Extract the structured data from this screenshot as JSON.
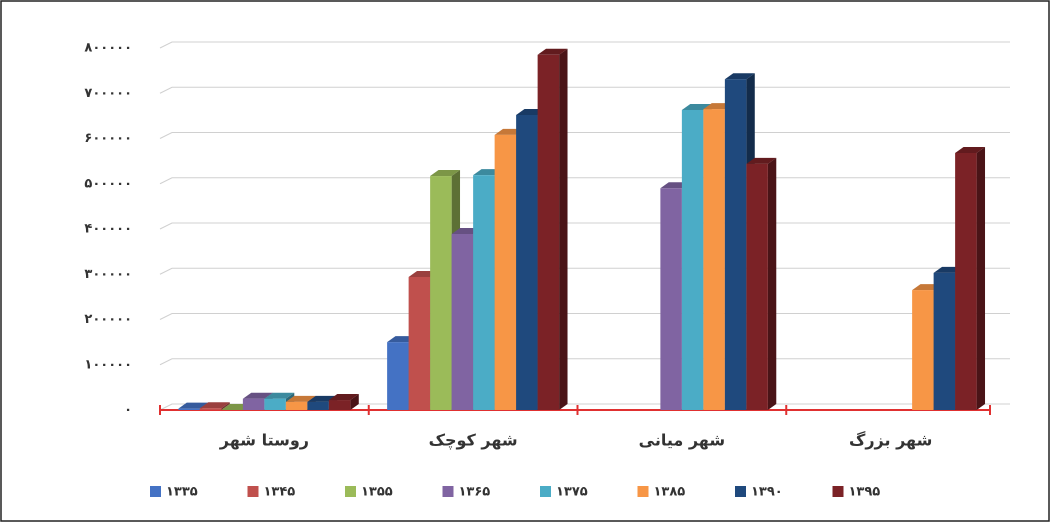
{
  "chart_data": {
    "type": "bar3d",
    "categories": [
      "روستا شهر",
      "شهر کوچک",
      "شهر میانی",
      "شهر بزرگ"
    ],
    "series": [
      {
        "name": "۱۳۳۵",
        "color": "#4472c4",
        "values": [
          3000,
          150000,
          null,
          null
        ]
      },
      {
        "name": "۱۳۴۵",
        "color": "#c0504d",
        "values": [
          4000,
          294000,
          null,
          null
        ]
      },
      {
        "name": "۱۳۵۵",
        "color": "#9bbb59",
        "values": [
          0,
          517000,
          null,
          null
        ]
      },
      {
        "name": "۱۳۶۵",
        "color": "#8064a2",
        "values": [
          25000,
          389000,
          490000,
          null
        ]
      },
      {
        "name": "۱۳۷۵",
        "color": "#4bacc6",
        "values": [
          25000,
          519000,
          663000,
          null
        ]
      },
      {
        "name": "۱۳۸۵",
        "color": "#f79646",
        "values": [
          18000,
          608000,
          665000,
          265000
        ]
      },
      {
        "name": "۱۳۹۰",
        "color": "#1f497d",
        "values": [
          18000,
          652000,
          731000,
          303000
        ]
      },
      {
        "name": "۱۳۹۵",
        "color": "#7b2226",
        "values": [
          22000,
          785000,
          544000,
          568000
        ]
      }
    ],
    "ylim": [
      0,
      800000
    ],
    "yticks": [
      {
        "value": 0,
        "label": "۰"
      },
      {
        "value": 100000,
        "label": "۱۰۰۰۰۰"
      },
      {
        "value": 200000,
        "label": "۲۰۰۰۰۰"
      },
      {
        "value": 300000,
        "label": "۳۰۰۰۰۰"
      },
      {
        "value": 400000,
        "label": "۴۰۰۰۰۰"
      },
      {
        "value": 500000,
        "label": "۵۰۰۰۰۰"
      },
      {
        "value": 600000,
        "label": "۶۰۰۰۰۰"
      },
      {
        "value": 700000,
        "label": "۷۰۰۰۰۰"
      },
      {
        "value": 800000,
        "label": "۸۰۰۰۰۰"
      }
    ],
    "grid": true
  }
}
